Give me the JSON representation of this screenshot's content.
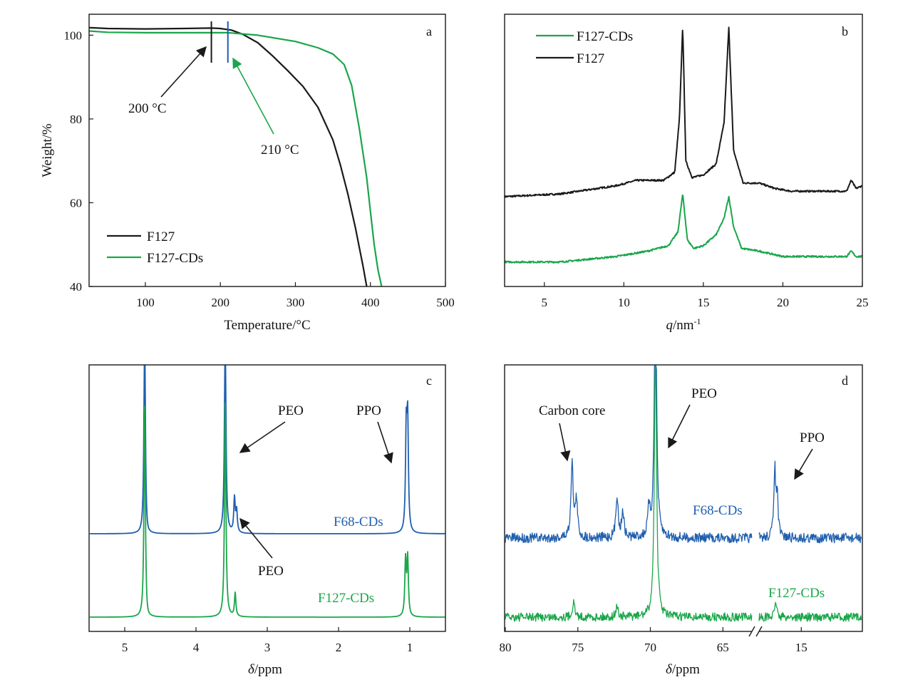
{
  "colors": {
    "black": "#1a1a1a",
    "green": "#1aa64a",
    "blue": "#1f5fae"
  },
  "chart_data": [
    {
      "panel": "a",
      "type": "line",
      "xlabel": "Temperature/°C",
      "ylabel": "Weight/%",
      "xlim": [
        25,
        500
      ],
      "ylim": [
        40,
        105
      ],
      "xticks": [
        "100",
        "200",
        "300",
        "400",
        "500"
      ],
      "yticks": [
        "40",
        "60",
        "80",
        "100"
      ],
      "legend": {
        "placement": "bottom-left",
        "entries": [
          "F127",
          "F127-CDs"
        ]
      },
      "series": [
        {
          "name": "F127",
          "color": "black",
          "x": [
            25,
            50,
            100,
            150,
            188,
            200,
            215,
            230,
            250,
            270,
            290,
            310,
            330,
            350,
            360,
            370,
            380,
            390,
            395
          ],
          "y": [
            101.8,
            101.6,
            101.5,
            101.6,
            101.7,
            101.6,
            101.2,
            100.2,
            98.2,
            95.0,
            91.5,
            87.8,
            82.8,
            75.0,
            69.0,
            62.0,
            54.0,
            45.0,
            40.0
          ]
        },
        {
          "name": "F127-CDs",
          "color": "green",
          "x": [
            25,
            50,
            100,
            150,
            200,
            210,
            250,
            300,
            330,
            350,
            365,
            375,
            385,
            395,
            400,
            405,
            410,
            415
          ],
          "y": [
            101.0,
            100.7,
            100.6,
            100.6,
            100.6,
            100.6,
            100.0,
            98.5,
            97.0,
            95.5,
            93.0,
            88.0,
            78.0,
            66.0,
            58.0,
            50.0,
            44.0,
            40.0
          ]
        }
      ],
      "annotations": [
        {
          "text": "200 °C",
          "x": 188,
          "color": "black"
        },
        {
          "text": "210 °C",
          "x": 210,
          "color": "blue"
        }
      ]
    },
    {
      "panel": "b",
      "type": "line",
      "xlabel_italic": "q",
      "xlabel_rest": "/nm",
      "xlabel_sup": "-1",
      "xlim": [
        2.5,
        25
      ],
      "ylim": [
        0,
        1
      ],
      "xticks": [
        "5",
        "10",
        "15",
        "20",
        "25"
      ],
      "legend": {
        "placement": "top-left",
        "entries": [
          "F127-CDs",
          "F127"
        ]
      },
      "series": [
        {
          "name": "F127",
          "color": "black",
          "baseline": 0.33,
          "x": [
            2.5,
            6.0,
            9.5,
            10.8,
            12.5,
            13.2,
            13.5,
            13.7,
            13.9,
            14.3,
            15.0,
            15.8,
            16.3,
            16.6,
            16.9,
            17.5,
            18.5,
            19.5,
            20.5,
            22.0,
            24.0,
            24.3,
            24.6,
            25.0
          ],
          "y": [
            0.33,
            0.34,
            0.37,
            0.39,
            0.39,
            0.42,
            0.62,
            0.96,
            0.46,
            0.4,
            0.41,
            0.45,
            0.6,
            0.95,
            0.5,
            0.38,
            0.38,
            0.36,
            0.35,
            0.35,
            0.35,
            0.39,
            0.36,
            0.37
          ]
        },
        {
          "name": "F127-CDs",
          "color": "green",
          "baseline": 0.09,
          "x": [
            2.5,
            6.0,
            9.5,
            11.5,
            12.8,
            13.4,
            13.7,
            14.0,
            14.4,
            15.0,
            15.8,
            16.3,
            16.6,
            16.9,
            17.4,
            18.5,
            20.0,
            22.0,
            24.0,
            24.3,
            24.6,
            25.0
          ],
          "y": [
            0.09,
            0.09,
            0.11,
            0.13,
            0.15,
            0.2,
            0.34,
            0.17,
            0.14,
            0.15,
            0.19,
            0.25,
            0.33,
            0.22,
            0.14,
            0.13,
            0.11,
            0.11,
            0.11,
            0.13,
            0.11,
            0.11
          ]
        }
      ]
    },
    {
      "panel": "c",
      "type": "line",
      "xlabel_italic": "δ",
      "xlabel_rest": "/ppm",
      "xlim": [
        5.5,
        0.5
      ],
      "xticks": [
        "5",
        "4",
        "3",
        "2",
        "1"
      ],
      "series": [
        {
          "name": "F68-CDs",
          "color": "blue",
          "peaks": [
            {
              "x": 4.72,
              "h": 1.0
            },
            {
              "x": 3.59,
              "h": 1.0
            },
            {
              "x": 3.46,
              "h": 0.16
            },
            {
              "x": 3.43,
              "h": 0.1
            },
            {
              "x": 1.05,
              "h": 0.46
            },
            {
              "x": 1.03,
              "h": 0.5
            }
          ]
        },
        {
          "name": "F127-CDs",
          "color": "green",
          "peaks": [
            {
              "x": 4.72,
              "h": 1.0
            },
            {
              "x": 3.59,
              "h": 1.0
            },
            {
              "x": 3.45,
              "h": 0.11
            },
            {
              "x": 1.06,
              "h": 0.26
            },
            {
              "x": 1.03,
              "h": 0.27
            }
          ]
        }
      ],
      "annotations": [
        {
          "text": "PEO",
          "target_x": 3.62
        },
        {
          "text": "PPO",
          "target_x": 1.05
        },
        {
          "text": "PEO",
          "target_x": 3.43
        }
      ]
    },
    {
      "panel": "d",
      "type": "line",
      "xlabel_italic": "δ",
      "xlabel_rest": "/ppm",
      "xlim_left": [
        80,
        63
      ],
      "xlim_right": [
        18.5,
        10
      ],
      "xticks": [
        "80",
        "75",
        "70",
        "65",
        "15"
      ],
      "series": [
        {
          "name": "F68-CDs",
          "color": "blue",
          "peaks": [
            {
              "x": 75.4,
              "h": 0.28
            },
            {
              "x": 75.1,
              "h": 0.14
            },
            {
              "x": 72.3,
              "h": 0.16
            },
            {
              "x": 71.9,
              "h": 0.1
            },
            {
              "x": 70.1,
              "h": 0.1
            },
            {
              "x": 69.65,
              "h": 1.0
            },
            {
              "x": 17.2,
              "h": 0.25
            },
            {
              "x": 17.0,
              "h": 0.15
            }
          ]
        },
        {
          "name": "F127-CDs",
          "color": "green",
          "peaks": [
            {
              "x": 75.3,
              "h": 0.06
            },
            {
              "x": 72.3,
              "h": 0.04
            },
            {
              "x": 69.65,
              "h": 1.0
            },
            {
              "x": 17.1,
              "h": 0.06
            }
          ]
        }
      ],
      "annotations": [
        {
          "text": "Carbon core",
          "target_x": 75.4
        },
        {
          "text": "PEO",
          "target_x": 69.6
        },
        {
          "text": "PPO",
          "target_x": 17.1
        }
      ]
    }
  ]
}
